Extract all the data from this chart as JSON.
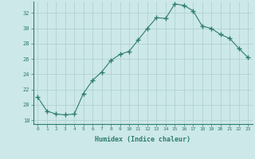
{
  "x": [
    0,
    1,
    2,
    3,
    4,
    5,
    6,
    7,
    8,
    9,
    10,
    11,
    12,
    13,
    14,
    15,
    16,
    17,
    18,
    19,
    20,
    21,
    22,
    23
  ],
  "y": [
    21.0,
    19.2,
    18.8,
    18.7,
    18.8,
    21.5,
    23.2,
    24.3,
    25.8,
    26.6,
    27.0,
    28.5,
    30.0,
    31.4,
    31.3,
    33.2,
    33.0,
    32.3,
    30.3,
    30.0,
    29.2,
    28.7,
    27.4,
    26.2
  ],
  "xlabel": "Humidex (Indice chaleur)",
  "ylim": [
    17.5,
    33.5
  ],
  "xlim": [
    -0.5,
    23.5
  ],
  "yticks": [
    18,
    20,
    22,
    24,
    26,
    28,
    30,
    32
  ],
  "xticks": [
    0,
    1,
    2,
    3,
    4,
    5,
    6,
    7,
    8,
    9,
    10,
    11,
    12,
    13,
    14,
    15,
    16,
    17,
    18,
    19,
    20,
    21,
    22,
    23
  ],
  "line_color": "#2e7d6e",
  "marker": "+",
  "bg_color": "#cce8e8",
  "grid_color": "#aecece",
  "text_color": "#2e7d6e",
  "font_family": "monospace",
  "xtick_labels": [
    "0",
    "1",
    "2",
    "3",
    "4",
    "5",
    "6",
    "7",
    "8",
    "9",
    "10",
    "11",
    "12",
    "13",
    "14",
    "15",
    "16",
    "17",
    "18",
    "19",
    "20",
    "21",
    "22",
    "23"
  ]
}
